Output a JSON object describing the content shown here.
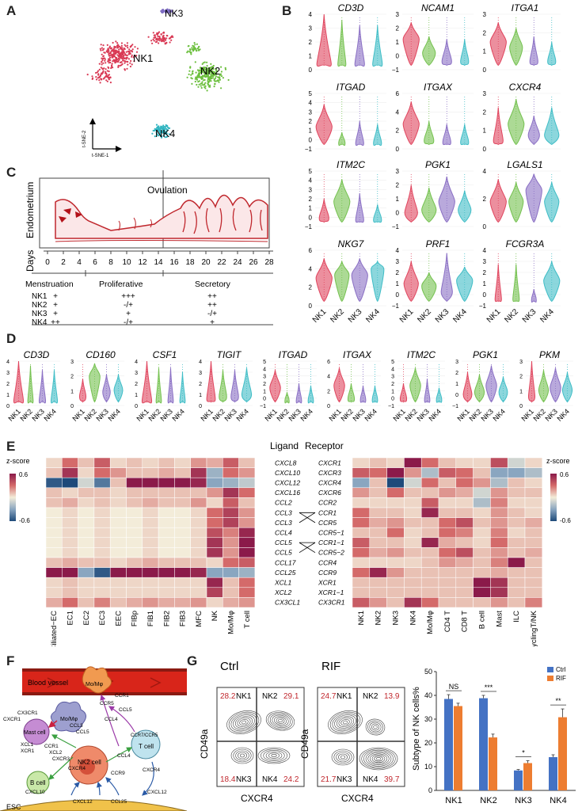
{
  "panel_labels": {
    "a": "A",
    "b": "B",
    "c": "C",
    "d": "D",
    "e": "E",
    "f": "F",
    "g": "G"
  },
  "colors": {
    "nk1": "#e0455e",
    "nk2": "#74c14f",
    "nk3": "#8a6fc4",
    "nk4": "#3fbdc6",
    "ctrl": "#4472c4",
    "rif": "#ed7d31",
    "uterus": "#c0272d"
  },
  "panel_a": {
    "clusters": [
      {
        "label": "NK1",
        "color": "#d93a55"
      },
      {
        "label": "NK2",
        "color": "#6cbf3e"
      },
      {
        "label": "NK3",
        "color": "#7d6bc2"
      },
      {
        "label": "NK4",
        "color": "#2eb4c0"
      }
    ],
    "axis_y": "t-SNE-2",
    "axis_x": "t-SNE-1"
  },
  "panel_b": {
    "groups": [
      "NK1",
      "NK2",
      "NK3",
      "NK4"
    ],
    "genes": [
      {
        "name": "CD3D",
        "ticks": [
          "4",
          "3",
          "2",
          "1",
          "0"
        ]
      },
      {
        "name": "NCAM1",
        "ticks": [
          "3",
          "2",
          "1",
          "0",
          "−1"
        ]
      },
      {
        "name": "ITGA1",
        "ticks": [
          "3",
          "2",
          "1",
          "0"
        ]
      },
      {
        "name": "ITGAD",
        "ticks": [
          "5",
          "4",
          "3",
          "2",
          "1",
          "0",
          "−1"
        ]
      },
      {
        "name": "ITGAX",
        "ticks": [
          "6",
          "4",
          "2",
          "0"
        ]
      },
      {
        "name": "CXCR4",
        "ticks": [
          "3",
          "2",
          "1",
          "0"
        ]
      },
      {
        "name": "ITM2C",
        "ticks": [
          "5",
          "4",
          "3",
          "2",
          "1",
          "0",
          "−1"
        ]
      },
      {
        "name": "PGK1",
        "ticks": [
          "3",
          "2",
          "1",
          "0",
          "−1"
        ]
      },
      {
        "name": "LGALS1",
        "ticks": [
          "4",
          "2",
          "0"
        ]
      },
      {
        "name": "NKG7",
        "ticks": [
          "6",
          "4",
          "2",
          "0"
        ]
      },
      {
        "name": "PRF1",
        "ticks": [
          "4",
          "3",
          "2",
          "1",
          "0",
          "−1"
        ]
      },
      {
        "name": "FCGR3A",
        "ticks": [
          "4",
          "3",
          "2",
          "1",
          "0",
          "−1"
        ]
      }
    ]
  },
  "panel_c": {
    "title": "Ovulation",
    "y_label": "Endometrium",
    "x_label": "Days",
    "days": [
      "0",
      "2",
      "4",
      "6",
      "8",
      "10",
      "12",
      "14",
      "16",
      "18",
      "20",
      "22",
      "24",
      "26",
      "28"
    ],
    "phases": [
      "Menstruation",
      "Proliferative",
      "Secretory"
    ],
    "rows": [
      {
        "label": "NK1",
        "values": [
          "+",
          "+++",
          "++"
        ]
      },
      {
        "label": "NK2",
        "values": [
          "+",
          "-/+",
          "++"
        ]
      },
      {
        "label": "NK3",
        "values": [
          "+",
          "+",
          "-/+"
        ]
      },
      {
        "label": "NK4",
        "values": [
          "++",
          "-/+",
          "+"
        ]
      }
    ]
  },
  "panel_d": {
    "groups": [
      "NK1",
      "NK2",
      "NK3",
      "NK4"
    ],
    "genes": [
      {
        "name": "CD3D",
        "ticks": [
          "4",
          "3",
          "2",
          "1",
          "0"
        ]
      },
      {
        "name": "CD160",
        "ticks": [
          "3",
          "2",
          "1",
          "0"
        ]
      },
      {
        "name": "CSF1",
        "ticks": [
          "4",
          "3",
          "2",
          "1",
          "0"
        ]
      },
      {
        "name": "TIGIT",
        "ticks": [
          "4",
          "3",
          "2",
          "1",
          "0"
        ]
      },
      {
        "name": "ITGAD",
        "ticks": [
          "5",
          "4",
          "3",
          "2",
          "1",
          "0",
          "−1"
        ]
      },
      {
        "name": "ITGAX",
        "ticks": [
          "6",
          "4",
          "2",
          "0"
        ]
      },
      {
        "name": "ITM2C",
        "ticks": [
          "5",
          "4",
          "3",
          "2",
          "1",
          "0",
          "−1"
        ]
      },
      {
        "name": "PGK1",
        "ticks": [
          "3",
          "2",
          "1",
          "0",
          "−1"
        ]
      },
      {
        "name": "PKM",
        "ticks": [
          "3",
          "2",
          "1",
          "0"
        ]
      }
    ]
  },
  "panel_e": {
    "ligand_title": "Ligand",
    "receptor_title": "Receptor",
    "zscore_label": "z-score",
    "scale_max": "0.6",
    "scale_min": "-0.6",
    "ligands": [
      "CXCL8",
      "CXCL10",
      "CXCL12",
      "CXCL16",
      "CCL2",
      "CCL3",
      "CCL3",
      "CCL4",
      "CCL5",
      "CCL5",
      "CCL17",
      "CCL25",
      "XCL1",
      "XCL2",
      "CX3CL1"
    ],
    "receptors": [
      "CXCR1",
      "CXCR3",
      "CXCR4",
      "CXCR6",
      "CCR2",
      "CCR1",
      "CCR5",
      "CCR5−1",
      "CCR1−1",
      "CCR5−2",
      "CCR4",
      "CCR9",
      "XCR1",
      "XCR1−1",
      "CX3CR1"
    ],
    "left_columns": [
      "Ciliated−EC",
      "EC1",
      "EC2",
      "EC3",
      "EEC",
      "FIBp",
      "FIB1",
      "FIB2",
      "FIB3",
      "MFC",
      "NK",
      "Mo/Mφ",
      "T cell"
    ],
    "right_columns": [
      "NK1",
      "NK2",
      "NK3",
      "NK4",
      "Mo/Mφ",
      "CD4 T",
      "CD8 T",
      "B cell",
      "Mast",
      "ILC",
      "CyclingT/NK"
    ],
    "left_matrix": [
      [
        0.05,
        0.3,
        0.1,
        0.35,
        0.05,
        0.1,
        0.05,
        0.1,
        0.05,
        0.2,
        0.15,
        0.35,
        0.1
      ],
      [
        0.1,
        0.5,
        0.05,
        0.3,
        0.2,
        0.1,
        0.1,
        0.15,
        0.1,
        0.5,
        -0.25,
        0.3,
        0.2
      ],
      [
        -0.55,
        -0.6,
        -0.1,
        -0.45,
        0.1,
        0.6,
        0.6,
        0.6,
        0.6,
        0.55,
        -0.3,
        -0.25,
        -0.15
      ],
      [
        0.1,
        0.05,
        0.1,
        0.1,
        0.05,
        0.1,
        0.1,
        0.1,
        0.1,
        0.1,
        0.2,
        0.5,
        0.3
      ],
      [
        0.1,
        0.15,
        0.05,
        0.1,
        0.05,
        0.1,
        0.15,
        0.1,
        0.1,
        0.2,
        0.05,
        0.35,
        0.1
      ],
      [
        0.0,
        0.05,
        0.0,
        0.05,
        0.0,
        0.0,
        0.05,
        0.0,
        0.0,
        0.05,
        0.3,
        0.45,
        0.2
      ],
      [
        0.0,
        0.05,
        0.0,
        0.05,
        0.0,
        0.0,
        0.05,
        0.0,
        0.0,
        0.05,
        0.3,
        0.45,
        0.2
      ],
      [
        0.0,
        0.05,
        0.0,
        0.05,
        0.0,
        0.0,
        0.05,
        0.0,
        0.0,
        0.05,
        0.4,
        0.25,
        0.55
      ],
      [
        0.0,
        0.05,
        0.0,
        0.05,
        0.0,
        0.0,
        0.05,
        0.0,
        0.0,
        0.05,
        0.5,
        0.2,
        0.6
      ],
      [
        0.0,
        0.05,
        0.0,
        0.05,
        0.0,
        0.0,
        0.05,
        0.0,
        0.0,
        0.05,
        0.5,
        0.2,
        0.6
      ],
      [
        0.1,
        0.15,
        0.1,
        0.1,
        0.05,
        0.1,
        0.15,
        0.1,
        0.1,
        0.1,
        0.05,
        0.3,
        0.35
      ],
      [
        0.6,
        0.6,
        -0.3,
        -0.55,
        0.6,
        0.6,
        0.6,
        0.6,
        0.6,
        0.55,
        -0.3,
        -0.3,
        -0.25
      ],
      [
        0.05,
        0.1,
        0.05,
        0.05,
        0.05,
        0.05,
        0.05,
        0.05,
        0.05,
        0.05,
        0.55,
        0.1,
        0.3
      ],
      [
        0.05,
        0.1,
        0.05,
        0.05,
        0.05,
        0.05,
        0.05,
        0.05,
        0.05,
        0.05,
        0.45,
        0.1,
        0.3
      ],
      [
        0.15,
        0.3,
        0.1,
        0.25,
        0.1,
        0.15,
        0.2,
        0.15,
        0.15,
        0.2,
        0.05,
        0.15,
        0.2
      ]
    ],
    "right_matrix": [
      [
        0.05,
        0.1,
        0.05,
        0.6,
        0.3,
        0.1,
        0.05,
        0.05,
        0.4,
        -0.1,
        0.05
      ],
      [
        0.35,
        0.3,
        0.6,
        0.2,
        -0.2,
        0.35,
        0.3,
        0.1,
        -0.3,
        -0.3,
        -0.2
      ],
      [
        -0.3,
        0.1,
        -0.6,
        -0.1,
        0.3,
        0.1,
        0.3,
        0.2,
        -0.2,
        0.1,
        0.05
      ],
      [
        0.2,
        0.1,
        0.3,
        0.1,
        0.1,
        0.2,
        0.15,
        -0.1,
        0.2,
        0.1,
        0.1
      ],
      [
        0.05,
        0.05,
        0.05,
        0.05,
        0.35,
        0.05,
        0.05,
        -0.2,
        0.25,
        0.05,
        0.05
      ],
      [
        0.3,
        0.1,
        0.1,
        0.05,
        0.55,
        0.1,
        0.1,
        0.05,
        0.2,
        0.1,
        0.05
      ],
      [
        0.3,
        0.15,
        0.2,
        0.1,
        0.1,
        0.3,
        0.4,
        0.1,
        0.2,
        0.1,
        0.15
      ],
      [
        0.1,
        0.1,
        0.3,
        0.05,
        0.1,
        0.3,
        0.25,
        0.05,
        0.25,
        0.05,
        0.1
      ],
      [
        0.35,
        0.1,
        0.1,
        0.05,
        0.55,
        0.15,
        0.1,
        0.05,
        0.3,
        0.1,
        0.1
      ],
      [
        0.3,
        0.15,
        0.2,
        0.1,
        0.1,
        0.3,
        0.4,
        0.1,
        0.2,
        0.1,
        0.15
      ],
      [
        0.05,
        0.05,
        0.05,
        0.05,
        0.1,
        0.2,
        0.15,
        0.1,
        0.25,
        0.6,
        0.1
      ],
      [
        0.3,
        0.55,
        0.2,
        0.1,
        0.1,
        0.1,
        0.1,
        0.1,
        0.15,
        0.1,
        0.1
      ],
      [
        0.1,
        0.1,
        0.1,
        0.1,
        0.1,
        0.1,
        0.1,
        0.6,
        0.5,
        0.1,
        0.1
      ],
      [
        0.1,
        0.1,
        0.1,
        0.1,
        0.1,
        0.1,
        0.1,
        0.6,
        0.5,
        0.1,
        0.1
      ],
      [
        0.35,
        0.2,
        0.1,
        0.5,
        0.3,
        0.1,
        0.1,
        0.1,
        0.2,
        0.1,
        0.25
      ]
    ]
  },
  "panel_f": {
    "blood_vessel": "Blood vessel",
    "esc": "ESC",
    "cells": {
      "mo1": "Mo/Mφ",
      "mo2": "Mo/Mφ",
      "mast": "Mast cell",
      "nk2": "NK2 cell",
      "b": "B cell",
      "t": "T cell",
      "ccr7": "CCR7/CCR5"
    },
    "labels": [
      "CCR1",
      "CCR5",
      "CCL5",
      "CCL4",
      "CXCR1",
      "CX3CR1",
      "CCL3",
      "CCL5",
      "XCL1",
      "XCR1",
      "CCR1",
      "XCL2",
      "CXCR3",
      "CXCR4",
      "CCL4",
      "CCR9",
      "CXCR4",
      "CXCL10",
      "CXCL12",
      "CCL25",
      "CXCL12"
    ]
  },
  "panel_g": {
    "ctrl_title": "Ctrl",
    "rif_title": "RIF",
    "x_label": "CXCR4",
    "y_label": "CD49a",
    "ctrl_quads": {
      "nk1": "28.2",
      "nk2": "29.1",
      "nk3": "18.4",
      "nk4": "24.2"
    },
    "rif_quads": {
      "nk1": "24.7",
      "nk2": "13.9",
      "nk3": "21.7",
      "nk4": "39.7"
    },
    "quad_names": {
      "nk1": "NK1",
      "nk2": "NK2",
      "nk3": "NK3",
      "nk4": "NK4"
    }
  },
  "chart_data": {
    "type": "bar",
    "title": "",
    "xlabel": "",
    "ylabel": "Subtype of NK cells%",
    "ylim": [
      0,
      50
    ],
    "yticks": [
      "0",
      "10",
      "20",
      "30",
      "40",
      "50"
    ],
    "categories": [
      "NK1",
      "NK2",
      "NK3",
      "NK4"
    ],
    "series": [
      {
        "name": "Ctrl",
        "values": [
          38.5,
          38.8,
          8.4,
          14.0
        ],
        "errors": [
          1.8,
          1.2,
          0.4,
          1.0
        ]
      },
      {
        "name": "RIF",
        "values": [
          35.5,
          22.3,
          11.5,
          30.8
        ],
        "errors": [
          1.2,
          1.4,
          1.0,
          3.5
        ]
      }
    ],
    "significance": [
      "NS",
      "***",
      "*",
      "**"
    ],
    "legend": [
      "Ctrl",
      "RIF"
    ]
  }
}
